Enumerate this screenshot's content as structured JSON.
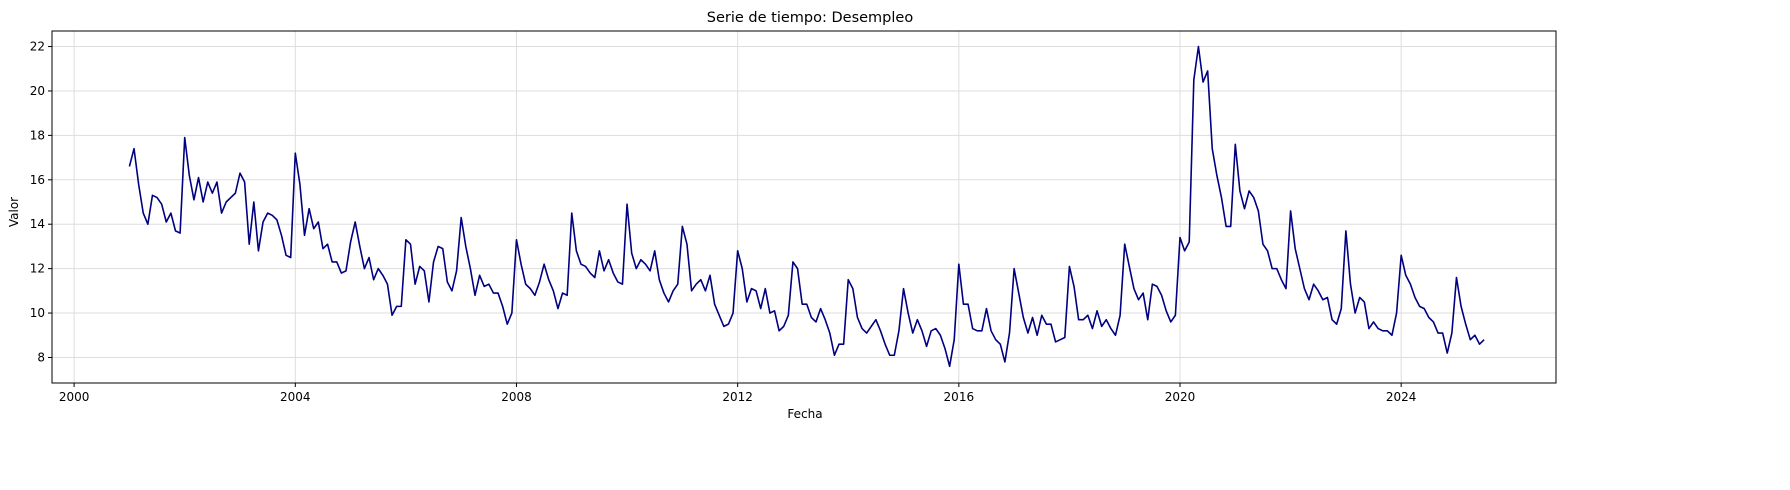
{
  "chart_data": {
    "type": "line",
    "title": "Serie de tiempo: Desempleo",
    "xlabel": "Fecha",
    "ylabel": "Valor",
    "xlim": [
      1999.6,
      2026.8
    ],
    "ylim": [
      6.85,
      22.7
    ],
    "grid": true,
    "x_ticks": [
      2000,
      2004,
      2008,
      2012,
      2016,
      2020,
      2024
    ],
    "y_ticks": [
      8,
      10,
      12,
      14,
      16,
      18,
      20,
      22
    ],
    "line_color": "#000080",
    "series": [
      {
        "start": "2001-01",
        "frequency": "monthly",
        "values": [
          16.6,
          17.4,
          15.8,
          14.5,
          14.0,
          15.3,
          15.2,
          14.9,
          14.1,
          14.5,
          13.7,
          13.6,
          17.9,
          16.2,
          15.1,
          16.1,
          15.0,
          15.9,
          15.4,
          15.9,
          14.5,
          15.0,
          15.2,
          15.4,
          16.3,
          15.9,
          13.1,
          15.0,
          12.8,
          14.1,
          14.5,
          14.4,
          14.2,
          13.5,
          12.6,
          12.5,
          17.2,
          15.8,
          13.5,
          14.7,
          13.8,
          14.1,
          12.9,
          13.1,
          12.3,
          12.3,
          11.8,
          11.9,
          13.2,
          14.1,
          13.0,
          12.0,
          12.5,
          11.5,
          12.0,
          11.7,
          11.3,
          9.9,
          10.3,
          10.3,
          13.3,
          13.1,
          11.3,
          12.1,
          11.9,
          10.5,
          12.3,
          13.0,
          12.9,
          11.4,
          11.0,
          11.9,
          14.3,
          13.0,
          12.0,
          10.8,
          11.7,
          11.2,
          11.3,
          10.9,
          10.9,
          10.3,
          9.5,
          10.0,
          13.3,
          12.2,
          11.3,
          11.1,
          10.8,
          11.4,
          12.2,
          11.5,
          11.0,
          10.2,
          10.9,
          10.8,
          14.5,
          12.8,
          12.2,
          12.1,
          11.8,
          11.6,
          12.8,
          11.9,
          12.4,
          11.8,
          11.4,
          11.3,
          14.9,
          12.7,
          12.0,
          12.4,
          12.2,
          11.9,
          12.8,
          11.5,
          10.9,
          10.5,
          11.0,
          11.3,
          13.9,
          13.1,
          11.0,
          11.3,
          11.5,
          11.0,
          11.7,
          10.4,
          9.9,
          9.4,
          9.5,
          10.0,
          12.8,
          12.0,
          10.5,
          11.1,
          11.0,
          10.2,
          11.1,
          10.0,
          10.1,
          9.2,
          9.4,
          9.9,
          12.3,
          12.0,
          10.4,
          10.4,
          9.8,
          9.6,
          10.2,
          9.7,
          9.1,
          8.1,
          8.6,
          8.6,
          11.5,
          11.1,
          9.8,
          9.3,
          9.1,
          9.4,
          9.7,
          9.2,
          8.6,
          8.1,
          8.1,
          9.2,
          11.1,
          10.0,
          9.1,
          9.7,
          9.2,
          8.5,
          9.2,
          9.3,
          9.0,
          8.4,
          7.6,
          8.8,
          12.2,
          10.4,
          10.4,
          9.3,
          9.2,
          9.2,
          10.2,
          9.2,
          8.8,
          8.6,
          7.8,
          9.1,
          12.0,
          10.9,
          9.8,
          9.1,
          9.8,
          9.0,
          9.9,
          9.5,
          9.5,
          8.7,
          8.8,
          8.9,
          12.1,
          11.2,
          9.7,
          9.7,
          9.9,
          9.3,
          10.1,
          9.4,
          9.7,
          9.3,
          9.0,
          9.9,
          13.1,
          12.1,
          11.1,
          10.6,
          10.9,
          9.7,
          11.3,
          11.2,
          10.8,
          10.1,
          9.6,
          9.9,
          13.4,
          12.8,
          13.2,
          20.5,
          22.0,
          20.4,
          20.9,
          17.4,
          16.2,
          15.2,
          13.9,
          13.9,
          17.6,
          15.5,
          14.7,
          15.5,
          15.2,
          14.6,
          13.1,
          12.8,
          12.0,
          12.0,
          11.5,
          11.1,
          14.6,
          12.9,
          12.0,
          11.1,
          10.6,
          11.3,
          11.0,
          10.6,
          10.7,
          9.7,
          9.5,
          10.2,
          13.7,
          11.3,
          10.0,
          10.7,
          10.5,
          9.3,
          9.6,
          9.3,
          9.2,
          9.2,
          9.0,
          10.0,
          12.6,
          11.7,
          11.3,
          10.7,
          10.3,
          10.2,
          9.8,
          9.6,
          9.1,
          9.1,
          8.2,
          9.1,
          11.6,
          10.3,
          9.5,
          8.8,
          9.0,
          8.6,
          8.8
        ]
      }
    ]
  }
}
